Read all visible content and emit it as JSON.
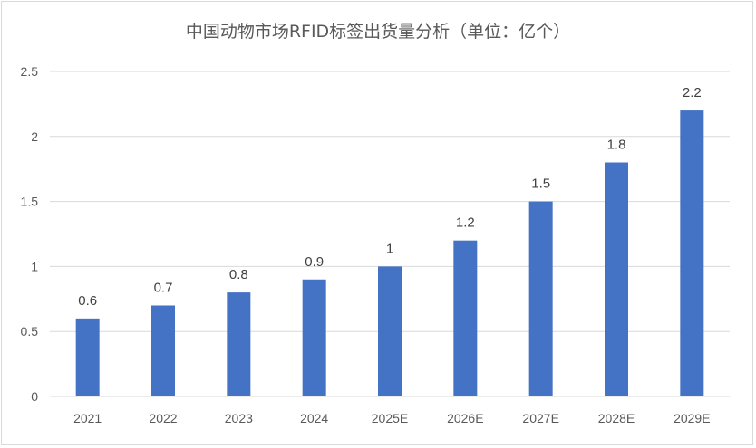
{
  "chart_data": {
    "type": "bar",
    "title": "中国动物市场RFID标签出货量分析（单位：亿个）",
    "categories": [
      "2021",
      "2022",
      "2023",
      "2024",
      "2025E",
      "2026E",
      "2027E",
      "2028E",
      "2029E"
    ],
    "values": [
      0.6,
      0.7,
      0.8,
      0.9,
      1,
      1.2,
      1.5,
      1.8,
      2.2
    ],
    "data_labels": [
      "0.6",
      "0.7",
      "0.8",
      "0.9",
      "1",
      "1.2",
      "1.5",
      "1.8",
      "2.2"
    ],
    "xlabel": "",
    "ylabel": "",
    "ylim": [
      0,
      2.5
    ],
    "yticks": [
      "0",
      "0.5",
      "1",
      "1.5",
      "2",
      "2.5"
    ],
    "grid": true,
    "bar_color": "#4472C4",
    "legend": "none"
  }
}
